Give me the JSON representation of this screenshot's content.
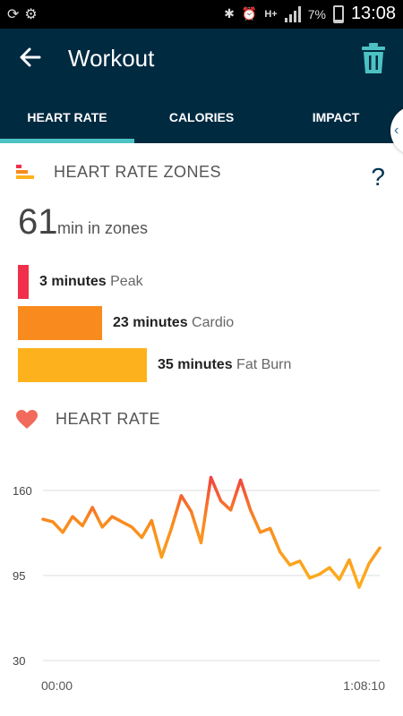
{
  "status_bar": {
    "battery": "7%",
    "time": "13:08",
    "network": "H+"
  },
  "app_bar": {
    "title": "Workout"
  },
  "tabs": [
    {
      "label": "HEART RATE",
      "active": true
    },
    {
      "label": "CALORIES",
      "active": false
    },
    {
      "label": "IMPACT",
      "active": false
    }
  ],
  "zones_section": {
    "title": "HEART RATE ZONES",
    "help": "?",
    "total_minutes": "61",
    "total_label": "min in zones",
    "zones": [
      {
        "minutes": "3 minutes",
        "name": "Peak",
        "value": 3,
        "color": "#f0304a"
      },
      {
        "minutes": "23 minutes",
        "name": "Cardio",
        "value": 23,
        "color": "#f98b1e"
      },
      {
        "minutes": "35 minutes",
        "name": "Fat Burn",
        "value": 35,
        "color": "#fdb21d"
      }
    ]
  },
  "hr_section": {
    "title": "HEART RATE"
  },
  "colors": {
    "app_bar": "#002a40",
    "tab_indicator": "#4cc2c4",
    "heart": "#f26a5b"
  },
  "chart_data": {
    "type": "line",
    "ylim": [
      30,
      175
    ],
    "y_ticks": [
      "160",
      "95",
      "30"
    ],
    "x_ticks": [
      "00:00",
      "1:08:10"
    ],
    "x_minutes": [
      0,
      2,
      4,
      6,
      8,
      10,
      12,
      14,
      16,
      18,
      20,
      22,
      24,
      26,
      28,
      30,
      32,
      34,
      36,
      38,
      40,
      42,
      44,
      46,
      48,
      50,
      52,
      54,
      56,
      58,
      60,
      62,
      64,
      66,
      68.17
    ],
    "values": [
      138,
      136,
      128,
      140,
      133,
      147,
      132,
      140,
      136,
      132,
      124,
      137,
      109,
      131,
      156,
      144,
      120,
      170,
      152,
      145,
      168,
      145,
      128,
      131,
      113,
      103,
      106,
      93,
      96,
      101,
      92,
      107,
      86,
      104,
      116
    ]
  }
}
